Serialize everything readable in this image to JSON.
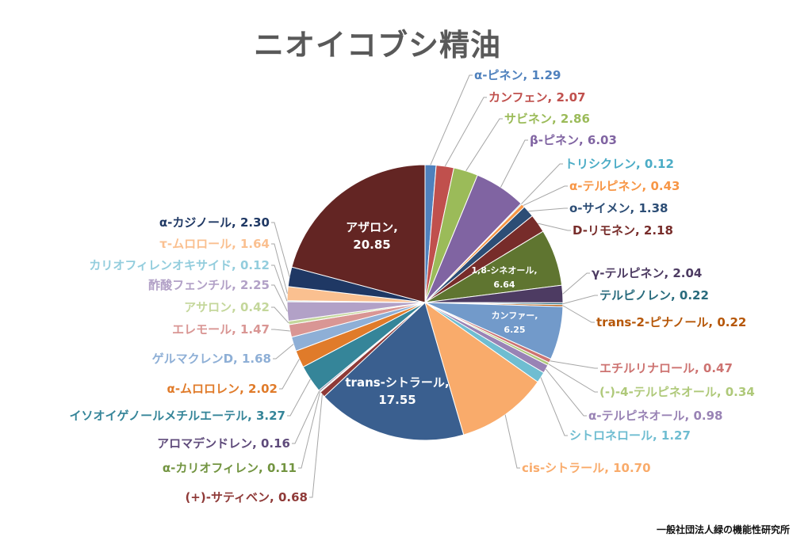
{
  "chart_data": {
    "type": "pie",
    "title": "ニオイコブシ精油",
    "slices": [
      {
        "label": "α-ピネン",
        "value": 1.29,
        "display": "α-ピネン, 1.29",
        "color": "#4f81bd"
      },
      {
        "label": "カンフェン",
        "value": 2.07,
        "display": "カンフェン, 2.07",
        "color": "#c0504d"
      },
      {
        "label": "サビネン",
        "value": 2.86,
        "display": "サビネン, 2.86",
        "color": "#9bbb59"
      },
      {
        "label": "β-ピネン",
        "value": 6.03,
        "display": "β-ピネン, 6.03",
        "color": "#8064a2"
      },
      {
        "label": "トリシクレン",
        "value": 0.12,
        "display": "トリシクレン, 0.12",
        "color": "#4bacc6"
      },
      {
        "label": "α-テルピネン",
        "value": 0.43,
        "display": "α-テルピネン, 0.43",
        "color": "#f79646"
      },
      {
        "label": "o-サイメン",
        "value": 1.38,
        "display": "o-サイメン, 1.38",
        "color": "#2c4d75"
      },
      {
        "label": "D-リモネン",
        "value": 2.18,
        "display": "D-リモネン, 2.18",
        "color": "#772c2a"
      },
      {
        "label": "1,8-シネオール",
        "value": 6.64,
        "display": "1,8-シネオール, 6.64",
        "color": "#5f7530"
      },
      {
        "label": "γ-テルピネン",
        "value": 2.04,
        "display": "γ-テルピネン, 2.04",
        "color": "#4d3b62"
      },
      {
        "label": "テルピノレン",
        "value": 0.22,
        "display": "テルピノレン, 0.22",
        "color": "#276a7c"
      },
      {
        "label": "trans-2-ピナノール",
        "value": 0.22,
        "display": "trans-2-ピナノール, 0.22",
        "color": "#b65708"
      },
      {
        "label": "カンファー",
        "value": 6.25,
        "display": "カンファー, 6.25",
        "color": "#729aca"
      },
      {
        "label": "エチルリナロール",
        "value": 0.47,
        "display": "エチルリナロール, 0.47",
        "color": "#cd7371"
      },
      {
        "label": "(-)-4-テルピネオール",
        "value": 0.34,
        "display": "(-)-4-テルピネオール, 0.34",
        "color": "#afc97a"
      },
      {
        "label": "α-テルピネオール",
        "value": 0.98,
        "display": "α-テルピネオール, 0.98",
        "color": "#9983b5"
      },
      {
        "label": "シトロネロール",
        "value": 1.27,
        "display": "シトロネロール, 1.27",
        "color": "#6fbdd1"
      },
      {
        "label": "cis-シトラール",
        "value": 10.7,
        "display": "cis-シトラール, 10.70",
        "color": "#f9ab6b"
      },
      {
        "label": "trans-シトラール",
        "value": 17.55,
        "display": "trans-シトラール, 17.55",
        "color": "#3a5f8f"
      },
      {
        "label": "(+)-サティベン",
        "value": 0.68,
        "display": "(+)-サティベン, 0.68",
        "color": "#8f3a38"
      },
      {
        "label": "α-カリオフィレン",
        "value": 0.11,
        "display": "α-カリオフィレン, 0.11",
        "color": "#729440"
      },
      {
        "label": "アロマデンドレン",
        "value": 0.16,
        "display": "アロマデンドレン, 0.16",
        "color": "#5f4b7b"
      },
      {
        "label": "イソオイゲノールメチルエーテル",
        "value": 3.27,
        "display": "イソオイゲノールメチルエーテル, 3.27",
        "color": "#358599"
      },
      {
        "label": "α-ムロロレン",
        "value": 2.02,
        "display": "α-ムロロレン, 2.02",
        "color": "#e07b2a"
      },
      {
        "label": "ゲルマクレンD",
        "value": 1.68,
        "display": "ゲルマクレンD, 1.68",
        "color": "#8eafd6"
      },
      {
        "label": "エレモール",
        "value": 1.47,
        "display": "エレモール, 1.47",
        "color": "#d99694"
      },
      {
        "label": "アサロン",
        "value": 0.42,
        "display": "アサロン, 0.42",
        "color": "#c4d79b"
      },
      {
        "label": "酢酸フェンチル",
        "value": 2.25,
        "display": "酢酸フェンチル, 2.25",
        "color": "#b2a1c7"
      },
      {
        "label": "カリオフィレンオキサイド",
        "value": 0.12,
        "display": "カリオフィレンオキサイド, 0.12",
        "color": "#93cddd"
      },
      {
        "label": "τ-ムロロール",
        "value": 1.64,
        "display": "τ-ムロロール, 1.64",
        "color": "#fac090"
      },
      {
        "label": "α-カジノール",
        "value": 2.3,
        "display": "α-カジノール, 2.30",
        "color": "#1f3864"
      },
      {
        "label": "アザロン",
        "value": 20.85,
        "display": "アザロン, 20.85",
        "color": "#632523"
      }
    ],
    "legend": "none"
  },
  "credit": "一般社団法人緑の機能性研究所"
}
